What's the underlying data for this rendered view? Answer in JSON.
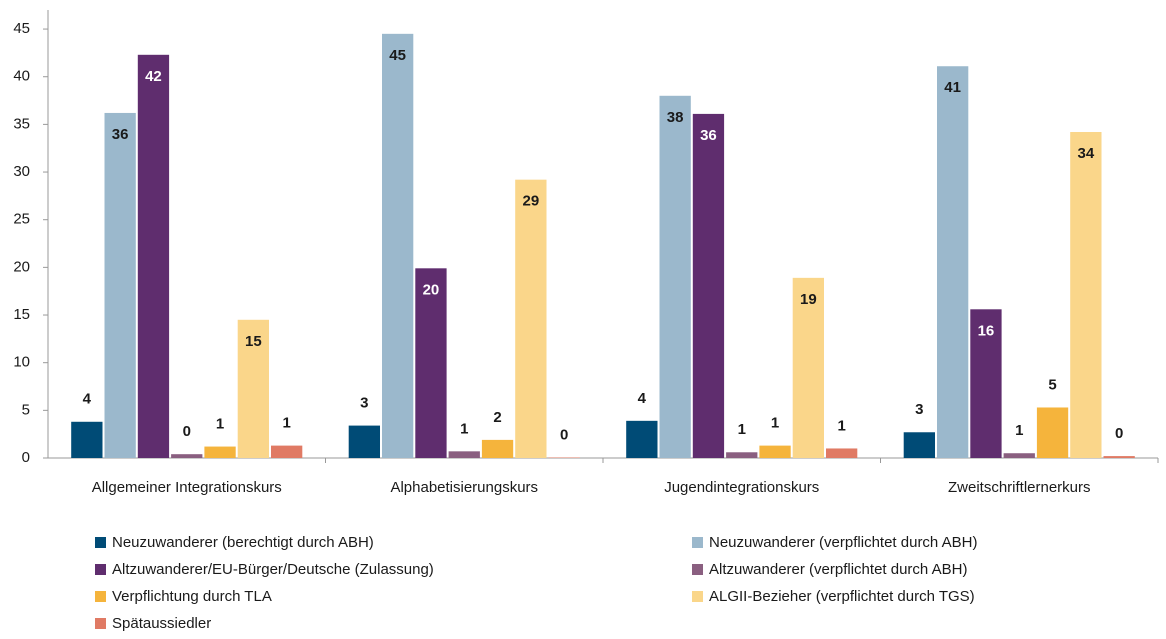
{
  "chart_data": {
    "type": "bar",
    "categories": [
      "Allgemeiner Integrationskurs",
      "Alphabetisierungskurs",
      "Jugendintegrationskurs",
      "Zweitschriftlernerkurs"
    ],
    "ylim": [
      0,
      47
    ],
    "yticks": [
      0,
      5,
      10,
      15,
      20,
      25,
      30,
      35,
      40,
      45
    ],
    "series": [
      {
        "name": "Neuzuwanderer (berechtigt durch ABH)",
        "color": "#004b76",
        "values": [
          3.8,
          3.4,
          3.9,
          2.7
        ],
        "value_labels": [
          "4",
          "3",
          "4",
          "3"
        ]
      },
      {
        "name": "Neuzuwanderer (verpflichtet durch ABH)",
        "color": "#9bb8cc",
        "values": [
          36.2,
          44.5,
          38.0,
          41.1
        ],
        "value_labels": [
          "36",
          "45",
          "38",
          "41"
        ]
      },
      {
        "name": "Altzuwanderer/EU-Bürger/Deutsche (Zulassung)",
        "color": "#5f2d6e",
        "values": [
          42.3,
          19.9,
          36.1,
          15.6
        ],
        "value_labels": [
          "42",
          "20",
          "36",
          "16"
        ]
      },
      {
        "name": "Altzuwanderer (verpflichtet durch ABH)",
        "color": "#8a5f80",
        "values": [
          0.4,
          0.7,
          0.6,
          0.5
        ],
        "value_labels": [
          "0",
          "1",
          "1",
          "1"
        ]
      },
      {
        "name": "Verpflichtung durch TLA",
        "color": "#f5b43c",
        "values": [
          1.2,
          1.9,
          1.3,
          5.3
        ],
        "value_labels": [
          "1",
          "2",
          "1",
          "5"
        ]
      },
      {
        "name": "ALGII-Bezieher (verpflichtet durch TGS)",
        "color": "#fad68a",
        "values": [
          14.5,
          29.2,
          18.9,
          34.2
        ],
        "value_labels": [
          "15",
          "29",
          "19",
          "34"
        ]
      },
      {
        "name": "Spätaussiedler",
        "color": "#e07a64",
        "values": [
          1.3,
          0.05,
          1.0,
          0.2
        ],
        "value_labels": [
          "1",
          "0",
          "1",
          "0"
        ]
      }
    ]
  }
}
